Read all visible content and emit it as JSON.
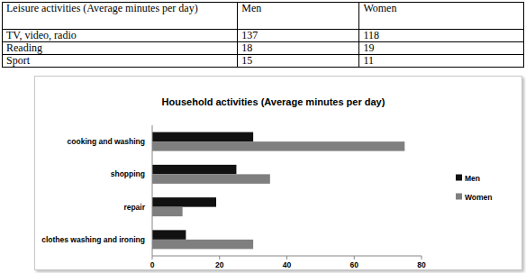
{
  "table": {
    "header": [
      "Leisure activities (Average minutes per day)",
      "Men",
      "Women"
    ],
    "rows": [
      [
        "TV, video, radio",
        137,
        118
      ],
      [
        "Reading",
        18,
        19
      ],
      [
        "Sport",
        15,
        11
      ]
    ]
  },
  "chart_data": {
    "type": "bar",
    "title": "Household activities (Average minutes per day)",
    "orientation": "horizontal",
    "categories": [
      "cooking and washing",
      "shopping",
      "repair",
      "clothes washing and ironing"
    ],
    "series": [
      {
        "name": "Men",
        "color": "#111111",
        "values": [
          30,
          25,
          19,
          10
        ]
      },
      {
        "name": "Women",
        "color": "#7f7f7f",
        "values": [
          75,
          35,
          9,
          30
        ]
      }
    ],
    "xlim": [
      0,
      80
    ],
    "xticks": [
      0,
      20,
      40,
      60,
      80
    ],
    "grid": false,
    "legend": "right"
  }
}
